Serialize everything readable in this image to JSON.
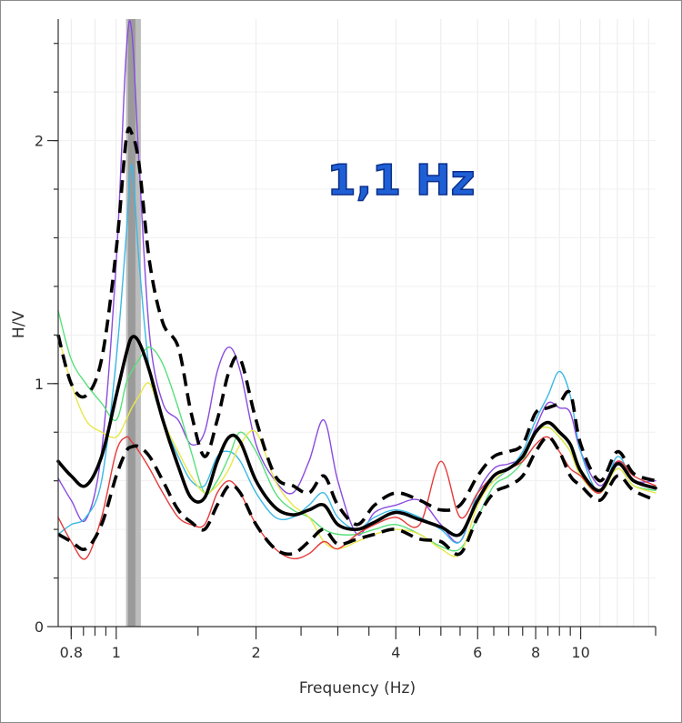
{
  "chart_data": {
    "type": "line",
    "xlabel": "Frequency (Hz)",
    "ylabel": "H/V",
    "annotation": "1,1 Hz",
    "x_scale": "log",
    "xlim": [
      0.75,
      14.5
    ],
    "ylim": [
      0,
      2.5
    ],
    "x_ticks": [
      "0.8",
      "1",
      "2",
      "4",
      "6",
      "8",
      "10"
    ],
    "y_ticks": [
      "0",
      "1",
      "2"
    ],
    "peak_band": {
      "from": 1.05,
      "to": 1.13,
      "center": 1.08
    },
    "grid": true,
    "colors": {
      "purple": "#8a4be0",
      "cyan": "#3ab8e6",
      "green": "#58e07a",
      "yellow": "#e8e84a",
      "red": "#e53a3a",
      "mean": "#000000",
      "band": "#9a9a9a"
    },
    "series": [
      {
        "x": [
          0.75,
          0.8,
          0.86,
          0.93,
          1.0,
          1.05,
          1.08,
          1.12,
          1.18,
          1.26,
          1.36,
          1.45,
          1.55,
          1.65,
          1.75,
          1.85,
          2.0,
          2.2,
          2.4,
          2.6,
          2.8,
          3.0,
          3.3,
          3.6,
          4.0,
          4.5,
          5.0,
          5.5,
          6.0,
          6.5,
          7.0,
          7.5,
          8.0,
          8.5,
          9.0,
          9.5,
          10.0,
          11.0,
          12.0,
          13.0,
          14.5
        ],
        "y": [
          0.61,
          0.52,
          0.44,
          0.72,
          1.5,
          2.35,
          2.45,
          1.9,
          1.2,
          0.92,
          0.85,
          0.75,
          0.8,
          1.05,
          1.15,
          1.05,
          0.75,
          0.6,
          0.55,
          0.68,
          0.85,
          0.6,
          0.38,
          0.47,
          0.5,
          0.52,
          0.42,
          0.35,
          0.55,
          0.65,
          0.67,
          0.7,
          0.82,
          0.92,
          0.9,
          0.88,
          0.72,
          0.58,
          0.68,
          0.6,
          0.6
        ],
        "color": "purple"
      },
      {
        "x": [
          0.75,
          0.8,
          0.86,
          0.93,
          1.0,
          1.05,
          1.08,
          1.12,
          1.18,
          1.26,
          1.36,
          1.45,
          1.55,
          1.65,
          1.75,
          1.85,
          2.0,
          2.2,
          2.4,
          2.6,
          2.8,
          3.0,
          3.3,
          3.6,
          4.0,
          4.5,
          5.0,
          5.5,
          6.0,
          6.5,
          7.0,
          7.5,
          8.0,
          8.5,
          9.0,
          9.5,
          10.0,
          11.0,
          12.0,
          13.0,
          14.5
        ],
        "y": [
          0.38,
          0.42,
          0.45,
          0.6,
          1.1,
          1.6,
          1.9,
          1.5,
          1.05,
          0.85,
          0.7,
          0.6,
          0.58,
          0.7,
          0.72,
          0.68,
          0.55,
          0.45,
          0.45,
          0.5,
          0.55,
          0.45,
          0.4,
          0.45,
          0.48,
          0.45,
          0.4,
          0.35,
          0.55,
          0.6,
          0.65,
          0.72,
          0.85,
          0.95,
          1.05,
          0.95,
          0.72,
          0.55,
          0.7,
          0.6,
          0.57
        ],
        "color": "cyan"
      },
      {
        "x": [
          0.75,
          0.8,
          0.86,
          0.93,
          1.0,
          1.05,
          1.08,
          1.12,
          1.18,
          1.26,
          1.36,
          1.45,
          1.55,
          1.65,
          1.75,
          1.85,
          2.0,
          2.2,
          2.4,
          2.6,
          2.8,
          3.0,
          3.3,
          3.6,
          4.0,
          4.5,
          5.0,
          5.5,
          6.0,
          6.5,
          7.0,
          7.5,
          8.0,
          8.5,
          9.0,
          9.5,
          10.0,
          11.0,
          12.0,
          13.0,
          14.5
        ],
        "y": [
          1.3,
          1.1,
          1.0,
          0.92,
          0.85,
          1.0,
          1.05,
          1.1,
          1.15,
          1.08,
          0.9,
          0.72,
          0.55,
          0.6,
          0.7,
          0.8,
          0.72,
          0.55,
          0.48,
          0.45,
          0.4,
          0.38,
          0.38,
          0.4,
          0.42,
          0.38,
          0.33,
          0.32,
          0.45,
          0.58,
          0.62,
          0.68,
          0.8,
          0.82,
          0.78,
          0.72,
          0.62,
          0.55,
          0.65,
          0.58,
          0.56
        ],
        "color": "green"
      },
      {
        "x": [
          0.75,
          0.8,
          0.86,
          0.93,
          1.0,
          1.05,
          1.08,
          1.12,
          1.18,
          1.26,
          1.36,
          1.45,
          1.55,
          1.65,
          1.75,
          1.85,
          2.0,
          2.2,
          2.4,
          2.6,
          2.8,
          3.0,
          3.3,
          3.6,
          4.0,
          4.5,
          5.0,
          5.5,
          6.0,
          6.5,
          7.0,
          7.5,
          8.0,
          8.5,
          9.0,
          9.5,
          10.0,
          11.0,
          12.0,
          13.0,
          14.5
        ],
        "y": [
          1.2,
          1.0,
          0.85,
          0.8,
          0.78,
          0.85,
          0.9,
          0.95,
          1.0,
          0.85,
          0.72,
          0.62,
          0.55,
          0.58,
          0.65,
          0.75,
          0.8,
          0.6,
          0.5,
          0.45,
          0.35,
          0.32,
          0.35,
          0.38,
          0.4,
          0.38,
          0.32,
          0.3,
          0.5,
          0.6,
          0.65,
          0.7,
          0.8,
          0.82,
          0.78,
          0.72,
          0.62,
          0.55,
          0.65,
          0.58,
          0.55
        ],
        "color": "yellow"
      },
      {
        "x": [
          0.75,
          0.8,
          0.86,
          0.93,
          1.0,
          1.05,
          1.08,
          1.12,
          1.18,
          1.26,
          1.36,
          1.45,
          1.55,
          1.65,
          1.75,
          1.85,
          2.0,
          2.2,
          2.4,
          2.6,
          2.8,
          3.0,
          3.3,
          3.6,
          4.0,
          4.5,
          5.0,
          5.5,
          6.0,
          6.5,
          7.0,
          7.5,
          8.0,
          8.5,
          9.0,
          9.5,
          10.0,
          11.0,
          12.0,
          13.0,
          14.5
        ],
        "y": [
          0.45,
          0.35,
          0.28,
          0.45,
          0.72,
          0.78,
          0.76,
          0.72,
          0.65,
          0.55,
          0.45,
          0.42,
          0.42,
          0.55,
          0.6,
          0.55,
          0.42,
          0.32,
          0.28,
          0.3,
          0.35,
          0.32,
          0.38,
          0.42,
          0.45,
          0.42,
          0.68,
          0.45,
          0.55,
          0.62,
          0.65,
          0.68,
          0.75,
          0.78,
          0.72,
          0.65,
          0.62,
          0.55,
          0.68,
          0.62,
          0.58
        ],
        "color": "red"
      },
      {
        "x": [
          0.75,
          0.8,
          0.86,
          0.93,
          1.0,
          1.05,
          1.08,
          1.12,
          1.18,
          1.26,
          1.36,
          1.45,
          1.55,
          1.65,
          1.75,
          1.85,
          2.0,
          2.2,
          2.4,
          2.6,
          2.8,
          3.0,
          3.3,
          3.6,
          4.0,
          4.5,
          5.0,
          5.5,
          6.0,
          6.5,
          7.0,
          7.5,
          8.0,
          8.5,
          9.0,
          9.5,
          10.0,
          11.0,
          12.0,
          13.0,
          14.5
        ],
        "y": [
          0.68,
          0.62,
          0.58,
          0.7,
          0.95,
          1.12,
          1.19,
          1.17,
          1.05,
          0.85,
          0.66,
          0.53,
          0.53,
          0.68,
          0.78,
          0.76,
          0.6,
          0.49,
          0.46,
          0.48,
          0.5,
          0.42,
          0.4,
          0.43,
          0.47,
          0.44,
          0.41,
          0.38,
          0.52,
          0.62,
          0.65,
          0.7,
          0.8,
          0.84,
          0.8,
          0.75,
          0.64,
          0.56,
          0.67,
          0.6,
          0.57
        ],
        "color": "mean",
        "style": "solid-thick"
      },
      {
        "x": [
          0.75,
          0.8,
          0.86,
          0.93,
          1.0,
          1.05,
          1.08,
          1.12,
          1.18,
          1.26,
          1.36,
          1.45,
          1.55,
          1.65,
          1.75,
          1.85,
          2.0,
          2.2,
          2.4,
          2.6,
          2.8,
          3.0,
          3.3,
          3.6,
          4.0,
          4.5,
          5.0,
          5.5,
          6.0,
          6.5,
          7.0,
          7.5,
          8.0,
          8.5,
          9.0,
          9.5,
          10.0,
          11.0,
          12.0,
          13.0,
          14.5
        ],
        "y": [
          1.2,
          1.0,
          0.95,
          1.1,
          1.55,
          2.0,
          2.03,
          1.9,
          1.5,
          1.25,
          1.15,
          0.88,
          0.7,
          0.85,
          1.05,
          1.1,
          0.85,
          0.62,
          0.58,
          0.55,
          0.62,
          0.5,
          0.42,
          0.5,
          0.55,
          0.52,
          0.48,
          0.5,
          0.62,
          0.7,
          0.72,
          0.75,
          0.88,
          0.9,
          0.92,
          0.96,
          0.75,
          0.6,
          0.72,
          0.63,
          0.6
        ],
        "color": "mean",
        "style": "dashed-thick"
      },
      {
        "x": [
          0.75,
          0.8,
          0.86,
          0.93,
          1.0,
          1.05,
          1.08,
          1.12,
          1.18,
          1.26,
          1.36,
          1.45,
          1.55,
          1.65,
          1.75,
          1.85,
          2.0,
          2.2,
          2.4,
          2.6,
          2.8,
          3.0,
          3.3,
          3.6,
          4.0,
          4.5,
          5.0,
          5.5,
          6.0,
          6.5,
          7.0,
          7.5,
          8.0,
          8.5,
          9.0,
          9.5,
          10.0,
          11.0,
          12.0,
          13.0,
          14.5
        ],
        "y": [
          0.38,
          0.35,
          0.32,
          0.42,
          0.62,
          0.72,
          0.74,
          0.74,
          0.7,
          0.6,
          0.48,
          0.43,
          0.4,
          0.5,
          0.58,
          0.55,
          0.42,
          0.32,
          0.3,
          0.35,
          0.4,
          0.34,
          0.36,
          0.38,
          0.4,
          0.36,
          0.35,
          0.3,
          0.45,
          0.55,
          0.58,
          0.62,
          0.72,
          0.78,
          0.72,
          0.62,
          0.58,
          0.52,
          0.62,
          0.56,
          0.52
        ],
        "color": "mean",
        "style": "dashed-thick"
      }
    ]
  }
}
